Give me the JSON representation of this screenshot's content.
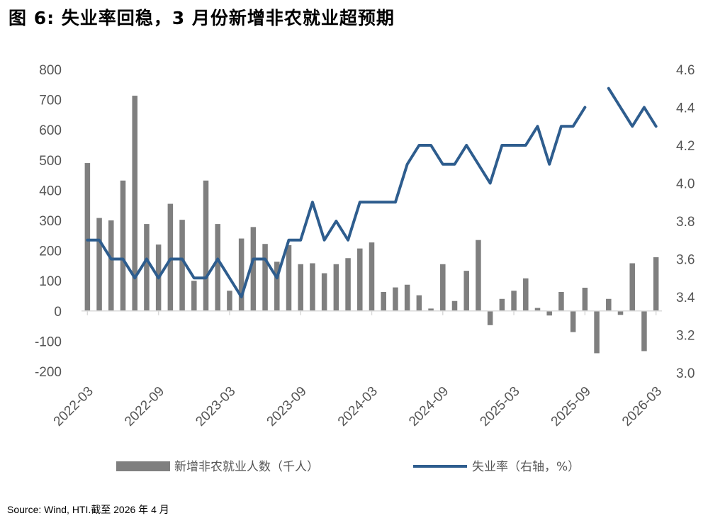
{
  "title": "图 6:  失业率回稳，3 月份新增非农就业超预期",
  "source": "Source: Wind, HTI.截至 2026 年 4 月",
  "colors": {
    "bar": "#7f7f7f",
    "line": "#2e5d8e",
    "axis": "#d9d9d9",
    "tick_text": "#555555"
  },
  "chart_data": {
    "type": "bar+line",
    "title": "失业率回稳，3 月份新增非农就业超预期",
    "categories": [
      "2022-03",
      "2022-04",
      "2022-05",
      "2022-06",
      "2022-07",
      "2022-08",
      "2022-09",
      "2022-10",
      "2022-11",
      "2022-12",
      "2023-01",
      "2023-02",
      "2023-03",
      "2023-04",
      "2023-05",
      "2023-06",
      "2023-07",
      "2023-08",
      "2023-09",
      "2023-10",
      "2023-11",
      "2023-12",
      "2024-01",
      "2024-02",
      "2024-03",
      "2024-04",
      "2024-05",
      "2024-06",
      "2024-07",
      "2024-08",
      "2024-09",
      "2024-10",
      "2024-11",
      "2024-12",
      "2025-01",
      "2025-02",
      "2025-03",
      "2025-04",
      "2025-05",
      "2025-06",
      "2025-07",
      "2025-08",
      "2025-09",
      "2025-10",
      "2025-11",
      "2025-12",
      "2026-01",
      "2026-02",
      "2026-03"
    ],
    "x_tick_labels": [
      "2022-03",
      "2022-09",
      "2023-03",
      "2023-09",
      "2024-03",
      "2024-09",
      "2025-03",
      "2025-09",
      "2026-03"
    ],
    "series": [
      {
        "name": "新增非农就业人数（千人）",
        "type": "bar",
        "axis": "left",
        "values": [
          490,
          308,
          300,
          432,
          713,
          288,
          220,
          355,
          302,
          100,
          432,
          288,
          67,
          240,
          278,
          222,
          163,
          218,
          155,
          158,
          125,
          155,
          175,
          207,
          227,
          63,
          78,
          87,
          52,
          8,
          155,
          33,
          133,
          235,
          -47,
          40,
          67,
          108,
          10,
          -15,
          63,
          -70,
          77,
          -140,
          40,
          -13,
          158,
          -133,
          178
        ]
      },
      {
        "name": "失业率（右轴，%）",
        "type": "line",
        "axis": "right",
        "values": [
          3.7,
          3.7,
          3.6,
          3.6,
          3.5,
          3.6,
          3.5,
          3.6,
          3.6,
          3.5,
          3.5,
          3.6,
          3.5,
          3.4,
          3.6,
          3.6,
          3.5,
          3.7,
          3.7,
          3.9,
          3.7,
          3.8,
          3.7,
          3.9,
          3.9,
          3.9,
          3.9,
          4.1,
          4.2,
          4.2,
          4.1,
          4.1,
          4.2,
          4.1,
          4.0,
          4.2,
          4.2,
          4.2,
          4.3,
          4.1,
          4.3,
          4.3,
          4.4,
          null,
          4.5,
          4.4,
          4.3,
          4.4,
          4.3
        ]
      }
    ],
    "y_left": {
      "min": -200,
      "max": 800,
      "step": 100,
      "tick_labels": [
        "800",
        "700",
        "600",
        "500",
        "400",
        "300",
        "200",
        "100",
        "0",
        "-100",
        "-200"
      ]
    },
    "y_right": {
      "min": 3.0,
      "max": 4.6,
      "step": 0.2,
      "tick_labels": [
        "4.6",
        "4.4",
        "4.2",
        "4.0",
        "3.8",
        "3.6",
        "3.4",
        "3.2",
        "3.0"
      ]
    },
    "legend": {
      "position": "bottom",
      "bar_label": "新增非农就业人数（千人）",
      "line_label": "失业率（右轴，%）"
    },
    "grid": false
  }
}
